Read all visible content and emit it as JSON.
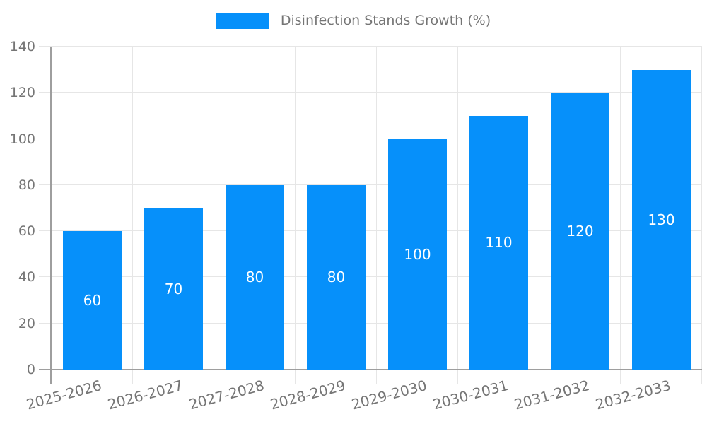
{
  "chart_data": {
    "type": "bar",
    "title": "Disinfection Stands Growth (%)",
    "categories": [
      "2025-2026",
      "2026-2027",
      "2027-2028",
      "2028-2029",
      "2029-2030",
      "2030-2031",
      "2031-2032",
      "2032-2033"
    ],
    "values": [
      60,
      70,
      80,
      80,
      100,
      110,
      120,
      130
    ],
    "bar_labels": [
      "60",
      "70",
      "80",
      "80",
      "100",
      "110",
      "120",
      "130"
    ],
    "xlabel": "",
    "ylabel": "",
    "ylim": [
      0,
      140
    ],
    "yticks": [
      0,
      20,
      40,
      60,
      80,
      100,
      120,
      140
    ],
    "grid": "on",
    "legend_position": "top-center",
    "colors": {
      "bar": "#0690fa",
      "bar_label_text": "#ffffff",
      "axis_text": "#757575",
      "legend_text": "#757575",
      "grid_line": "#e6e6e6",
      "axis_line": "#9e9e9e",
      "background": "#ffffff"
    }
  }
}
